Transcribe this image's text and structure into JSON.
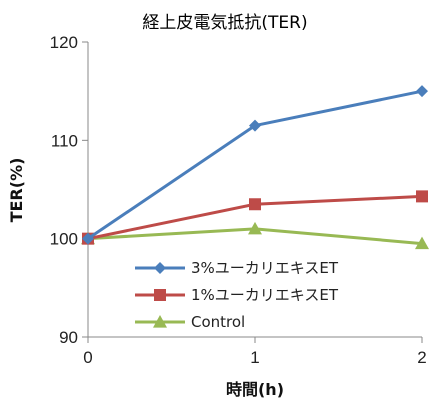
{
  "chart_data": {
    "type": "line",
    "title": "経上皮電気抵抗(TER)",
    "xlabel": "時間(h)",
    "ylabel": "TER(%)",
    "x": [
      0,
      1,
      2
    ],
    "categories": [
      "0",
      "1",
      "2"
    ],
    "ylim": [
      90,
      120
    ],
    "yticks": [
      90,
      100,
      110,
      120
    ],
    "grid": false,
    "legend_position": "lower-right",
    "series": [
      {
        "name": "3%ユーカリエキスET",
        "values": [
          100,
          111.5,
          115
        ],
        "color": "#4a7ebb",
        "marker": "diamond"
      },
      {
        "name": "1%ユーカリエキスET",
        "values": [
          100,
          103.5,
          104.3
        ],
        "color": "#be4b48",
        "marker": "square"
      },
      {
        "name": "Control",
        "values": [
          100,
          101,
          99.5
        ],
        "color": "#98b954",
        "marker": "triangle"
      }
    ]
  }
}
